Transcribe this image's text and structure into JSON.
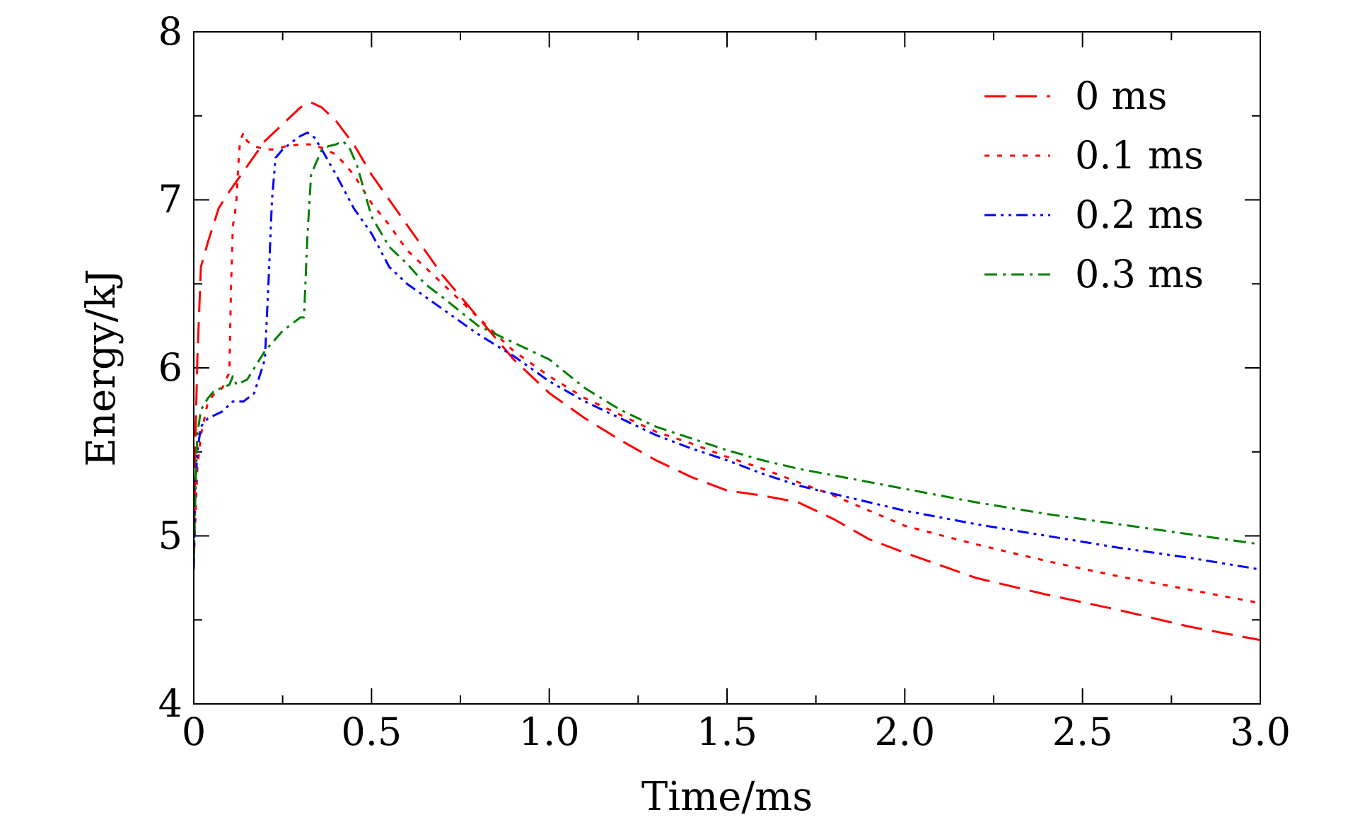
{
  "chart_data": {
    "type": "line",
    "title": "",
    "xlabel": "Time/ms",
    "ylabel": "Energy/kJ",
    "xlim": [
      0,
      3.0
    ],
    "ylim": [
      4,
      8
    ],
    "x_ticks": [
      0,
      0.5,
      1.0,
      1.5,
      2.0,
      2.5,
      3.0
    ],
    "x_tick_labels": [
      "0",
      "0.5",
      "1.0",
      "1.5",
      "2.0",
      "2.5",
      "3.0"
    ],
    "y_ticks": [
      4,
      5,
      6,
      7,
      8
    ],
    "y_tick_labels": [
      "4",
      "5",
      "6",
      "7",
      "8"
    ],
    "grid": false,
    "legend_position": "top-right",
    "series": [
      {
        "name": "0 ms",
        "color": "#ff0000",
        "dash": "dashed",
        "x": [
          0,
          0.005,
          0.01,
          0.02,
          0.04,
          0.07,
          0.1,
          0.15,
          0.2,
          0.25,
          0.3,
          0.33,
          0.36,
          0.4,
          0.45,
          0.5,
          0.55,
          0.6,
          0.7,
          0.8,
          0.9,
          1.0,
          1.1,
          1.2,
          1.3,
          1.4,
          1.5,
          1.6,
          1.7,
          1.8,
          1.9,
          2.0,
          2.2,
          2.4,
          2.6,
          2.8,
          3.0
        ],
        "y": [
          4.85,
          5.6,
          6.05,
          6.6,
          6.75,
          6.95,
          7.05,
          7.2,
          7.35,
          7.45,
          7.55,
          7.58,
          7.55,
          7.47,
          7.33,
          7.15,
          7.0,
          6.85,
          6.55,
          6.3,
          6.05,
          5.85,
          5.7,
          5.57,
          5.45,
          5.35,
          5.27,
          5.24,
          5.2,
          5.1,
          4.98,
          4.9,
          4.75,
          4.65,
          4.56,
          4.46,
          4.38
        ]
      },
      {
        "name": "0.1 ms",
        "color": "#ff0000",
        "dash": "dotted",
        "x": [
          0,
          0.01,
          0.02,
          0.04,
          0.06,
          0.08,
          0.085,
          0.09,
          0.095,
          0.1,
          0.105,
          0.11,
          0.115,
          0.12,
          0.125,
          0.13,
          0.14,
          0.15,
          0.17,
          0.2,
          0.23,
          0.26,
          0.3,
          0.33,
          0.36,
          0.4,
          0.45,
          0.5,
          0.55,
          0.6,
          0.7,
          0.8,
          0.9,
          1.0,
          1.1,
          1.2,
          1.3,
          1.4,
          1.5,
          1.6,
          1.7,
          1.8,
          1.9,
          2.0,
          2.2,
          2.4,
          2.6,
          2.8,
          3.0
        ],
        "y": [
          4.85,
          5.4,
          5.6,
          5.8,
          5.85,
          5.88,
          5.9,
          5.93,
          5.95,
          5.97,
          6.5,
          6.85,
          6.9,
          7.0,
          7.2,
          7.35,
          7.4,
          7.35,
          7.32,
          7.3,
          7.3,
          7.32,
          7.33,
          7.33,
          7.31,
          7.27,
          7.15,
          6.98,
          6.85,
          6.7,
          6.5,
          6.3,
          6.1,
          5.95,
          5.82,
          5.72,
          5.62,
          5.55,
          5.47,
          5.4,
          5.32,
          5.24,
          5.15,
          5.06,
          4.95,
          4.85,
          4.76,
          4.68,
          4.6
        ]
      },
      {
        "name": "0.2 ms",
        "color": "#0000ff",
        "dash": "dash-dot-dot",
        "x": [
          0,
          0.005,
          0.01,
          0.02,
          0.04,
          0.06,
          0.08,
          0.1,
          0.11,
          0.14,
          0.17,
          0.2,
          0.21,
          0.22,
          0.23,
          0.25,
          0.28,
          0.3,
          0.32,
          0.34,
          0.36,
          0.4,
          0.45,
          0.5,
          0.55,
          0.6,
          0.7,
          0.8,
          0.9,
          1.0,
          1.1,
          1.2,
          1.3,
          1.4,
          1.5,
          1.6,
          1.7,
          1.8,
          1.9,
          2.0,
          2.2,
          2.4,
          2.6,
          2.8,
          3.0
        ],
        "y": [
          4.8,
          5.3,
          5.5,
          5.65,
          5.7,
          5.72,
          5.74,
          5.78,
          5.8,
          5.8,
          5.85,
          6.05,
          6.5,
          7.0,
          7.25,
          7.3,
          7.35,
          7.38,
          7.4,
          7.37,
          7.3,
          7.15,
          6.95,
          6.8,
          6.6,
          6.5,
          6.35,
          6.2,
          6.07,
          5.92,
          5.8,
          5.7,
          5.6,
          5.52,
          5.45,
          5.37,
          5.3,
          5.25,
          5.2,
          5.15,
          5.07,
          5.0,
          4.93,
          4.87,
          4.8
        ]
      },
      {
        "name": "0.3 ms",
        "color": "#008000",
        "dash": "dash-dot",
        "x": [
          0,
          0.005,
          0.01,
          0.02,
          0.04,
          0.06,
          0.08,
          0.1,
          0.11,
          0.12,
          0.15,
          0.2,
          0.25,
          0.3,
          0.31,
          0.32,
          0.33,
          0.34,
          0.36,
          0.38,
          0.4,
          0.42,
          0.44,
          0.46,
          0.5,
          0.55,
          0.6,
          0.65,
          0.7,
          0.8,
          0.9,
          1.0,
          1.1,
          1.2,
          1.3,
          1.4,
          1.5,
          1.6,
          1.7,
          1.8,
          1.9,
          2.0,
          2.2,
          2.4,
          2.6,
          2.8,
          3.0
        ],
        "y": [
          4.85,
          5.3,
          5.6,
          5.75,
          5.82,
          5.87,
          5.88,
          5.9,
          5.95,
          5.9,
          5.93,
          6.1,
          6.22,
          6.3,
          6.3,
          6.8,
          7.15,
          7.2,
          7.3,
          7.32,
          7.33,
          7.35,
          7.3,
          7.2,
          6.9,
          6.72,
          6.62,
          6.5,
          6.42,
          6.25,
          6.15,
          6.05,
          5.88,
          5.75,
          5.65,
          5.58,
          5.51,
          5.45,
          5.4,
          5.36,
          5.32,
          5.28,
          5.2,
          5.13,
          5.07,
          5.01,
          4.95
        ]
      }
    ]
  }
}
